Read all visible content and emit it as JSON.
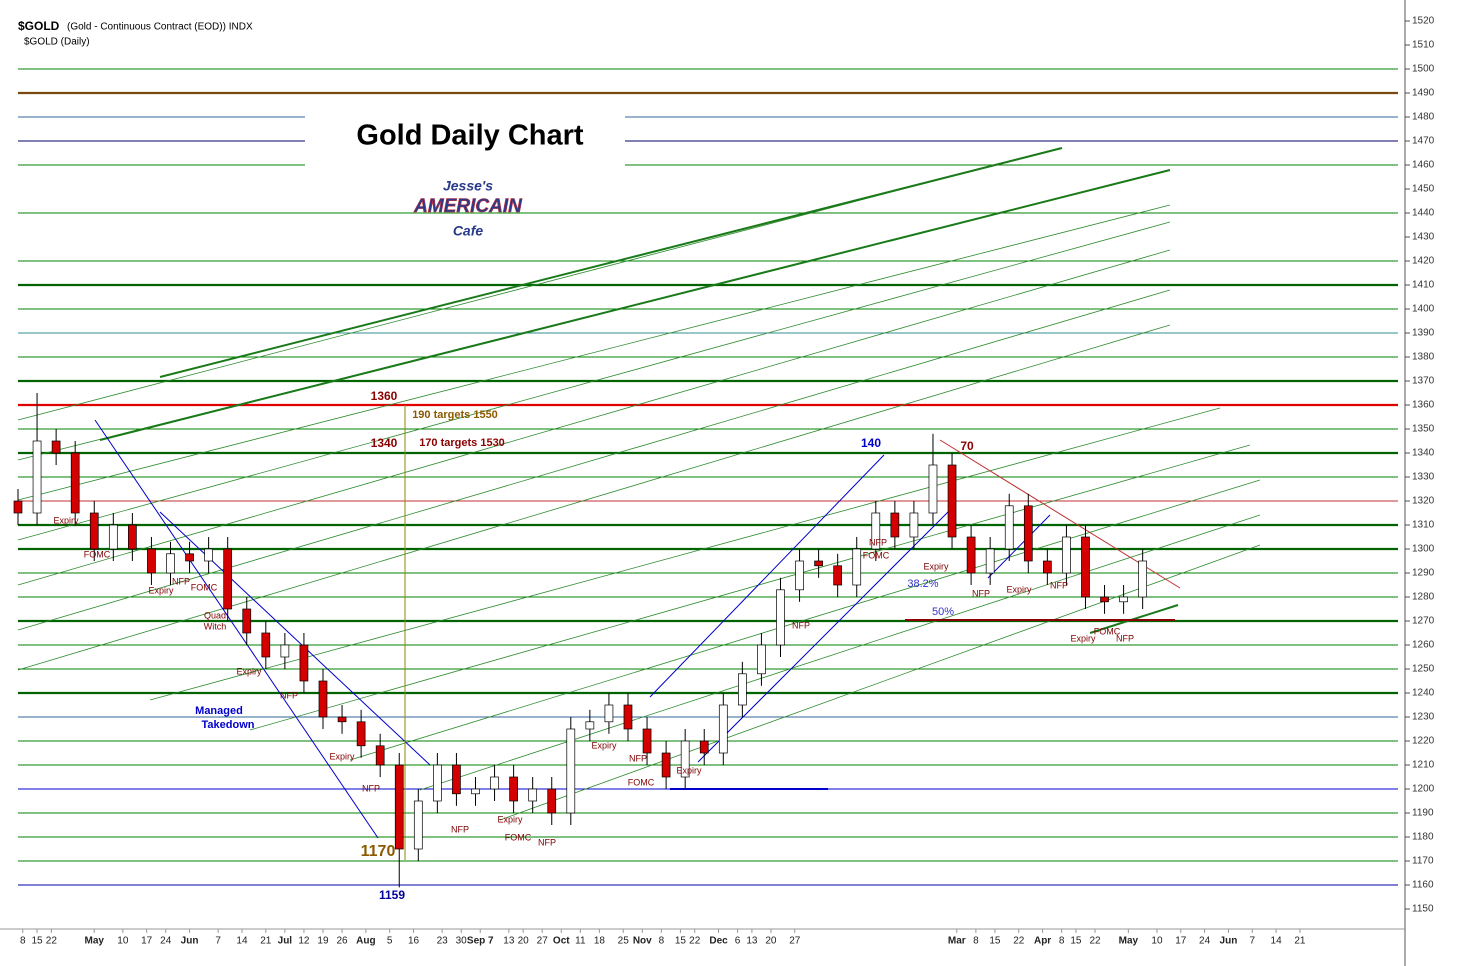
{
  "header": {
    "symbol": "$GOLD",
    "description": "(Gold - Continuous Contract (EOD)) INDX",
    "subtitle": "$GOLD (Daily)"
  },
  "logo": [
    "Jesse's",
    "AMERICAIN",
    "Cafe"
  ],
  "chart_data": {
    "type": "candlestick",
    "title": "Gold Daily Chart",
    "xlim": [
      0,
      290
    ],
    "ylim": [
      1144,
      1525
    ],
    "yticks": [
      1150,
      1160,
      1170,
      1180,
      1190,
      1200,
      1210,
      1220,
      1230,
      1240,
      1250,
      1260,
      1270,
      1280,
      1290,
      1300,
      1310,
      1320,
      1330,
      1340,
      1350,
      1360,
      1370,
      1380,
      1390,
      1400,
      1410,
      1420,
      1430,
      1440,
      1450,
      1460,
      1470,
      1480,
      1490,
      1500,
      1510,
      1520
    ],
    "xticks": [
      {
        "value": 1,
        "label": "8"
      },
      {
        "value": 4,
        "label": "15"
      },
      {
        "value": 7,
        "label": "22"
      },
      {
        "value": 16,
        "label": "May"
      },
      {
        "value": 22,
        "label": "10"
      },
      {
        "value": 27,
        "label": "17"
      },
      {
        "value": 31,
        "label": "24"
      },
      {
        "value": 36,
        "label": "Jun"
      },
      {
        "value": 42,
        "label": "7"
      },
      {
        "value": 47,
        "label": "14"
      },
      {
        "value": 52,
        "label": "21"
      },
      {
        "value": 56,
        "label": "Jul"
      },
      {
        "value": 60,
        "label": "12"
      },
      {
        "value": 64,
        "label": "19"
      },
      {
        "value": 68,
        "label": "26"
      },
      {
        "value": 73,
        "label": "Aug"
      },
      {
        "value": 78,
        "label": "5"
      },
      {
        "value": 83,
        "label": "16"
      },
      {
        "value": 89,
        "label": "23"
      },
      {
        "value": 93,
        "label": "30"
      },
      {
        "value": 97,
        "label": "Sep 7"
      },
      {
        "value": 103,
        "label": "13"
      },
      {
        "value": 106,
        "label": "20"
      },
      {
        "value": 110,
        "label": "27"
      },
      {
        "value": 114,
        "label": "Oct"
      },
      {
        "value": 118,
        "label": "11"
      },
      {
        "value": 122,
        "label": "18"
      },
      {
        "value": 127,
        "label": "25"
      },
      {
        "value": 131,
        "label": "Nov"
      },
      {
        "value": 135,
        "label": "8"
      },
      {
        "value": 139,
        "label": "15"
      },
      {
        "value": 142,
        "label": "22"
      },
      {
        "value": 147,
        "label": "Dec"
      },
      {
        "value": 151,
        "label": "6"
      },
      {
        "value": 154,
        "label": "13"
      },
      {
        "value": 158,
        "label": "20"
      },
      {
        "value": 163,
        "label": "27"
      },
      {
        "value": 197,
        "label": "Mar"
      },
      {
        "value": 201,
        "label": "8"
      },
      {
        "value": 205,
        "label": "15"
      },
      {
        "value": 210,
        "label": "22"
      },
      {
        "value": 215,
        "label": "Apr"
      },
      {
        "value": 219,
        "label": "8"
      },
      {
        "value": 222,
        "label": "15"
      },
      {
        "value": 226,
        "label": "22"
      },
      {
        "value": 233,
        "label": "May"
      },
      {
        "value": 239,
        "label": "10"
      },
      {
        "value": 244,
        "label": "17"
      },
      {
        "value": 249,
        "label": "24"
      },
      {
        "value": 254,
        "label": "Jun"
      },
      {
        "value": 259,
        "label": "7"
      },
      {
        "value": 264,
        "label": "14"
      },
      {
        "value": 269,
        "label": "21"
      }
    ],
    "x": [
      0,
      4,
      8,
      12,
      16,
      20,
      24,
      28,
      32,
      36,
      40,
      44,
      48,
      52,
      56,
      60,
      64,
      68,
      72,
      76,
      80,
      84,
      88,
      92,
      96,
      100,
      104,
      108,
      112,
      116,
      120,
      124,
      128,
      132,
      136,
      140,
      144,
      148,
      152,
      156,
      160,
      164,
      168,
      172,
      176,
      180,
      184,
      188,
      192,
      196,
      200,
      204,
      208,
      212,
      216,
      220,
      224,
      228,
      232,
      236
    ],
    "open": [
      1320,
      1315,
      1345,
      1340,
      1315,
      1300,
      1310,
      1300,
      1290,
      1298,
      1295,
      1300,
      1275,
      1265,
      1255,
      1260,
      1245,
      1230,
      1228,
      1218,
      1210,
      1175,
      1195,
      1210,
      1198,
      1200,
      1205,
      1195,
      1200,
      1190,
      1225,
      1228,
      1235,
      1225,
      1215,
      1205,
      1220,
      1215,
      1235,
      1248,
      1260,
      1283,
      1295,
      1293,
      1285,
      1300,
      1315,
      1305,
      1315,
      1335,
      1305,
      1290,
      1300,
      1318,
      1295,
      1290,
      1305,
      1280,
      1278,
      1280
    ],
    "high": [
      1325,
      1365,
      1350,
      1345,
      1320,
      1315,
      1315,
      1305,
      1303,
      1303,
      1305,
      1305,
      1280,
      1270,
      1265,
      1265,
      1250,
      1235,
      1233,
      1223,
      1215,
      1200,
      1215,
      1215,
      1205,
      1210,
      1210,
      1205,
      1205,
      1230,
      1233,
      1240,
      1240,
      1230,
      1220,
      1225,
      1225,
      1240,
      1253,
      1265,
      1288,
      1300,
      1300,
      1298,
      1305,
      1320,
      1320,
      1320,
      1348,
      1340,
      1310,
      1305,
      1323,
      1323,
      1300,
      1310,
      1310,
      1285,
      1285,
      1300
    ],
    "low": [
      1310,
      1310,
      1335,
      1310,
      1295,
      1295,
      1295,
      1285,
      1285,
      1290,
      1290,
      1270,
      1260,
      1250,
      1250,
      1240,
      1225,
      1223,
      1213,
      1205,
      1159,
      1170,
      1190,
      1193,
      1193,
      1195,
      1190,
      1190,
      1185,
      1185,
      1220,
      1223,
      1220,
      1210,
      1200,
      1200,
      1210,
      1210,
      1230,
      1243,
      1255,
      1278,
      1288,
      1280,
      1280,
      1295,
      1300,
      1300,
      1310,
      1300,
      1285,
      1285,
      1295,
      1290,
      1285,
      1285,
      1275,
      1273,
      1273,
      1275
    ],
    "close": [
      1315,
      1345,
      1340,
      1315,
      1300,
      1310,
      1300,
      1290,
      1298,
      1295,
      1300,
      1275,
      1265,
      1255,
      1260,
      1245,
      1230,
      1228,
      1218,
      1210,
      1175,
      1195,
      1210,
      1198,
      1200,
      1205,
      1195,
      1200,
      1190,
      1225,
      1228,
      1235,
      1225,
      1215,
      1205,
      1220,
      1215,
      1235,
      1248,
      1260,
      1283,
      1295,
      1293,
      1285,
      1300,
      1315,
      1305,
      1315,
      1335,
      1305,
      1290,
      1300,
      1318,
      1295,
      1290,
      1305,
      1280,
      1278,
      1280,
      1295
    ],
    "up_color": "#ffffff",
    "down_color": "#d40000",
    "major_levels": [
      {
        "value": 1490,
        "color": "#7a4a10"
      },
      {
        "value": 1410,
        "color": "#006400"
      },
      {
        "value": 1370,
        "color": "#006400"
      },
      {
        "value": 1360,
        "color": "#e00000"
      },
      {
        "value": 1340,
        "color": "#006400"
      },
      {
        "value": 1310,
        "color": "#006400"
      },
      {
        "value": 1300,
        "color": "#006400"
      },
      {
        "value": 1270,
        "color": "#006400"
      },
      {
        "value": 1240,
        "color": "#006400"
      }
    ],
    "minor_levels": [
      {
        "value": 1500,
        "color": "#008000"
      },
      {
        "value": 1480,
        "color": "#336699"
      },
      {
        "value": 1470,
        "color": "#000066"
      },
      {
        "value": 1460,
        "color": "#008000"
      },
      {
        "value": 1440,
        "color": "#008000"
      },
      {
        "value": 1420,
        "color": "#008000"
      },
      {
        "value": 1400,
        "color": "#008000"
      },
      {
        "value": 1390,
        "color": "#2f8f8f"
      },
      {
        "value": 1380,
        "color": "#008000"
      },
      {
        "value": 1350,
        "color": "#008000"
      },
      {
        "value": 1330,
        "color": "#008000"
      },
      {
        "value": 1320,
        "color": "#c03030"
      },
      {
        "value": 1290,
        "color": "#008000"
      },
      {
        "value": 1280,
        "color": "#008000"
      },
      {
        "value": 1260,
        "color": "#008000"
      },
      {
        "value": 1250,
        "color": "#008000"
      },
      {
        "value": 1230,
        "color": "#336699"
      },
      {
        "value": 1220,
        "color": "#008000"
      },
      {
        "value": 1210,
        "color": "#008000"
      },
      {
        "value": 1200,
        "color": "#0000cc"
      },
      {
        "value": 1190,
        "color": "#008000"
      },
      {
        "value": 1180,
        "color": "#008000"
      },
      {
        "value": 1170,
        "color": "#008000"
      },
      {
        "value": 1160,
        "color": "#0000aa"
      }
    ],
    "annotations": [
      "Expiry",
      "FOMC",
      "Expiry",
      "NFP",
      "FOMC",
      "Quad",
      "Witch",
      "Expiry",
      "NFP",
      "Managed",
      "Takedown",
      "Expiry",
      "NFP",
      "1170",
      "1159",
      "NFP",
      "Expiry",
      "FOMC",
      "NFP",
      "Expiry",
      "NFP",
      "FOMC",
      "Expiry",
      "NFP",
      "NFP",
      "FOMC",
      "Expiry",
      "NFP",
      "Expiry",
      "NFP",
      "Expiry",
      "FOMC",
      "NFP",
      "38.2%",
      "50%",
      "140",
      "70",
      "1360",
      "1340",
      "190  targets 1550",
      "170 targets 1530"
    ]
  }
}
